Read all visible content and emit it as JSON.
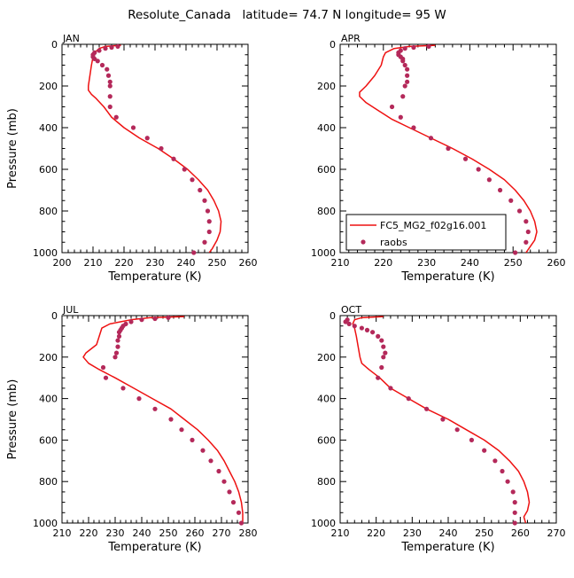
{
  "title": "Resolute_Canada   latitude= 74.7 N longitude= 95 W",
  "colors": {
    "model_line": "#ee1111",
    "obs_marker": "#b4295a",
    "axis": "#000000"
  },
  "chart_data": [
    {
      "type": "line",
      "panel": "JAN",
      "xlabel": "Temperature (K)",
      "ylabel": "Pressure (mb)",
      "xlim": [
        200,
        260
      ],
      "ylim": [
        1000,
        0
      ],
      "xticks": [
        200,
        210,
        220,
        230,
        240,
        250,
        260
      ],
      "yticks": [
        0,
        200,
        400,
        600,
        800,
        1000
      ],
      "series": [
        {
          "name": "",
          "style": "line",
          "points": [
            [
              219,
              5
            ],
            [
              214,
              10
            ],
            [
              212,
              20
            ],
            [
              210.5,
              40
            ],
            [
              210,
              60
            ],
            [
              209.5,
              100
            ],
            [
              209,
              150
            ],
            [
              208.5,
              200
            ],
            [
              208.5,
              220
            ],
            [
              209.5,
              240
            ],
            [
              211,
              260
            ],
            [
              213.5,
              300
            ],
            [
              216,
              350
            ],
            [
              220,
              400
            ],
            [
              225,
              450
            ],
            [
              231,
              500
            ],
            [
              236,
              550
            ],
            [
              240.5,
              600
            ],
            [
              244,
              650
            ],
            [
              247,
              700
            ],
            [
              249,
              750
            ],
            [
              250.5,
              800
            ],
            [
              251.3,
              850
            ],
            [
              251,
              900
            ],
            [
              250,
              940
            ],
            [
              248.5,
              980
            ],
            [
              247.5,
              1000
            ]
          ]
        },
        {
          "name": "",
          "style": "markers",
          "points": [
            [
              218,
              10
            ],
            [
              216,
              15
            ],
            [
              214,
              20
            ],
            [
              212,
              30
            ],
            [
              210.5,
              40
            ],
            [
              210,
              50
            ],
            [
              210,
              60
            ],
            [
              210.5,
              70
            ],
            [
              211.5,
              80
            ],
            [
              213,
              100
            ],
            [
              214.5,
              120
            ],
            [
              215,
              150
            ],
            [
              215.5,
              180
            ],
            [
              215.5,
              200
            ],
            [
              215.5,
              250
            ],
            [
              215.5,
              300
            ],
            [
              217.5,
              350
            ],
            [
              223,
              400
            ],
            [
              227.5,
              450
            ],
            [
              232,
              500
            ],
            [
              236,
              550
            ],
            [
              239.5,
              600
            ],
            [
              242,
              650
            ],
            [
              244.5,
              700
            ],
            [
              246,
              750
            ],
            [
              247,
              800
            ],
            [
              247.5,
              850
            ],
            [
              247.5,
              900
            ],
            [
              246,
              950
            ],
            [
              242.5,
              1000
            ]
          ]
        }
      ]
    },
    {
      "type": "line",
      "panel": "APR",
      "xlabel": "Temperature (K)",
      "ylabel": "",
      "xlim": [
        210,
        260
      ],
      "ylim": [
        1000,
        0
      ],
      "xticks": [
        210,
        220,
        230,
        240,
        250,
        260
      ],
      "yticks": [
        0,
        200,
        400,
        600,
        800,
        1000
      ],
      "series": [
        {
          "name": "FC5_MG2_f02g16.001",
          "style": "line",
          "points": [
            [
              232,
              5
            ],
            [
              226,
              10
            ],
            [
              222.5,
              20
            ],
            [
              220.5,
              40
            ],
            [
              220,
              60
            ],
            [
              219.5,
              100
            ],
            [
              218,
              150
            ],
            [
              216,
              200
            ],
            [
              214.5,
              230
            ],
            [
              214.5,
              250
            ],
            [
              216,
              280
            ],
            [
              219,
              320
            ],
            [
              222,
              360
            ],
            [
              226,
              400
            ],
            [
              231,
              450
            ],
            [
              236,
              500
            ],
            [
              240.5,
              550
            ],
            [
              244.5,
              600
            ],
            [
              248,
              650
            ],
            [
              250.5,
              700
            ],
            [
              252.5,
              750
            ],
            [
              254,
              800
            ],
            [
              255,
              850
            ],
            [
              255.5,
              900
            ],
            [
              255,
              940
            ],
            [
              254,
              970
            ],
            [
              253,
              1000
            ]
          ]
        },
        {
          "name": "raobs",
          "style": "markers",
          "points": [
            [
              230.5,
              10
            ],
            [
              227,
              15
            ],
            [
              225,
              20
            ],
            [
              224,
              30
            ],
            [
              223.5,
              40
            ],
            [
              223.5,
              50
            ],
            [
              224,
              60
            ],
            [
              224.5,
              70
            ],
            [
              224.5,
              80
            ],
            [
              225,
              100
            ],
            [
              225.5,
              120
            ],
            [
              225.5,
              150
            ],
            [
              225.5,
              180
            ],
            [
              225,
              200
            ],
            [
              224.5,
              250
            ],
            [
              222,
              300
            ],
            [
              224,
              350
            ],
            [
              227,
              400
            ],
            [
              231,
              450
            ],
            [
              235,
              500
            ],
            [
              239,
              550
            ],
            [
              242,
              600
            ],
            [
              244.5,
              650
            ],
            [
              247,
              700
            ],
            [
              249.5,
              750
            ],
            [
              251.5,
              800
            ],
            [
              253,
              850
            ],
            [
              253.5,
              900
            ],
            [
              253,
              950
            ],
            [
              250.5,
              1000
            ]
          ]
        }
      ]
    },
    {
      "type": "line",
      "panel": "JUL",
      "xlabel": "Temperature (K)",
      "ylabel": "Pressure (mb)",
      "xlim": [
        210,
        280
      ],
      "ylim": [
        1000,
        0
      ],
      "xticks": [
        210,
        220,
        230,
        240,
        250,
        260,
        270,
        280
      ],
      "yticks": [
        0,
        200,
        400,
        600,
        800,
        1000
      ],
      "series": [
        {
          "name": "",
          "style": "line",
          "points": [
            [
              256,
              5
            ],
            [
              243,
              10
            ],
            [
              236,
              20
            ],
            [
              232,
              30
            ],
            [
              228,
              40
            ],
            [
              225,
              60
            ],
            [
              224,
              100
            ],
            [
              223,
              140
            ],
            [
              219,
              180
            ],
            [
              218,
              200
            ],
            [
              220,
              230
            ],
            [
              224,
              260
            ],
            [
              230,
              300
            ],
            [
              237,
              350
            ],
            [
              244,
              400
            ],
            [
              251,
              450
            ],
            [
              256,
              500
            ],
            [
              261,
              550
            ],
            [
              265,
              600
            ],
            [
              268.5,
              650
            ],
            [
              271,
              700
            ],
            [
              273,
              750
            ],
            [
              275,
              800
            ],
            [
              276.5,
              850
            ],
            [
              277.5,
              900
            ],
            [
              278,
              950
            ],
            [
              278,
              1000
            ]
          ]
        },
        {
          "name": "",
          "style": "markers",
          "points": [
            [
              250,
              10
            ],
            [
              245,
              15
            ],
            [
              240,
              20
            ],
            [
              236,
              30
            ],
            [
              234,
              40
            ],
            [
              233,
              50
            ],
            [
              232.5,
              60
            ],
            [
              232,
              70
            ],
            [
              231.5,
              80
            ],
            [
              231.5,
              100
            ],
            [
              231,
              120
            ],
            [
              231,
              150
            ],
            [
              230.5,
              180
            ],
            [
              230,
              200
            ],
            [
              225.5,
              250
            ],
            [
              226.5,
              300
            ],
            [
              233,
              350
            ],
            [
              239,
              400
            ],
            [
              245,
              450
            ],
            [
              251,
              500
            ],
            [
              255,
              550
            ],
            [
              259,
              600
            ],
            [
              263,
              650
            ],
            [
              266,
              700
            ],
            [
              269,
              750
            ],
            [
              271,
              800
            ],
            [
              273,
              850
            ],
            [
              274.5,
              900
            ],
            [
              276.5,
              950
            ],
            [
              277.5,
              1000
            ]
          ]
        }
      ]
    },
    {
      "type": "line",
      "panel": "OCT",
      "xlabel": "Temperature (K)",
      "ylabel": "",
      "xlim": [
        210,
        270
      ],
      "ylim": [
        1000,
        0
      ],
      "xticks": [
        210,
        220,
        230,
        240,
        250,
        260,
        270
      ],
      "yticks": [
        0,
        200,
        400,
        600,
        800,
        1000
      ],
      "series": [
        {
          "name": "",
          "style": "line",
          "points": [
            [
              222,
              5
            ],
            [
              216,
              10
            ],
            [
              214,
              20
            ],
            [
              213.5,
              40
            ],
            [
              214,
              60
            ],
            [
              214.5,
              100
            ],
            [
              215,
              150
            ],
            [
              215.5,
              200
            ],
            [
              216,
              230
            ],
            [
              218,
              260
            ],
            [
              221,
              300
            ],
            [
              224,
              350
            ],
            [
              229,
              400
            ],
            [
              234,
              450
            ],
            [
              240,
              500
            ],
            [
              245,
              550
            ],
            [
              250,
              600
            ],
            [
              254,
              650
            ],
            [
              257,
              700
            ],
            [
              259.5,
              750
            ],
            [
              261,
              800
            ],
            [
              262,
              850
            ],
            [
              262.5,
              900
            ],
            [
              262,
              940
            ],
            [
              261,
              970
            ],
            [
              261.5,
              1000
            ]
          ]
        },
        {
          "name": "",
          "style": "markers",
          "points": [
            [
              212,
              20
            ],
            [
              211.5,
              30
            ],
            [
              212.5,
              40
            ],
            [
              214,
              50
            ],
            [
              216,
              60
            ],
            [
              217.5,
              70
            ],
            [
              219,
              80
            ],
            [
              220.5,
              100
            ],
            [
              221.5,
              120
            ],
            [
              222,
              150
            ],
            [
              222.5,
              180
            ],
            [
              222,
              200
            ],
            [
              221.5,
              250
            ],
            [
              220.5,
              300
            ],
            [
              224,
              350
            ],
            [
              229,
              400
            ],
            [
              234,
              450
            ],
            [
              238.5,
              500
            ],
            [
              242.5,
              550
            ],
            [
              246.5,
              600
            ],
            [
              250,
              650
            ],
            [
              253,
              700
            ],
            [
              255,
              750
            ],
            [
              256.5,
              800
            ],
            [
              258,
              850
            ],
            [
              258.5,
              900
            ],
            [
              258.5,
              950
            ],
            [
              258.5,
              1000
            ]
          ]
        }
      ]
    }
  ]
}
